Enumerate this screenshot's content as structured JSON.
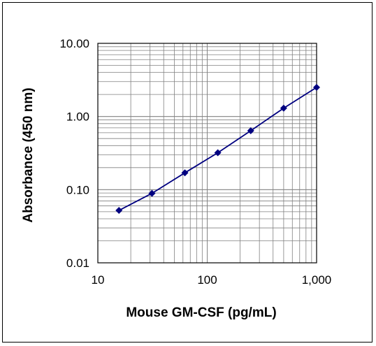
{
  "chart_data": {
    "type": "line",
    "title": "",
    "xlabel": "Mouse GM-CSF (pg/mL)",
    "ylabel": "Absorbance (450 nm)",
    "xscale": "log",
    "yscale": "log",
    "xlim": [
      10,
      1000
    ],
    "ylim": [
      0.01,
      10
    ],
    "x_tick_labels": [
      "10",
      "100",
      "1,000"
    ],
    "y_tick_labels": [
      "10.00",
      "1.00",
      "0.10",
      "0.01"
    ],
    "grid": true,
    "legend": "none",
    "series": [
      {
        "color": "#000080",
        "marker": "diamond",
        "x": [
          15.6,
          31.25,
          62.5,
          125,
          250,
          500,
          1000
        ],
        "y": [
          0.052,
          0.089,
          0.17,
          0.32,
          0.64,
          1.3,
          2.5
        ]
      }
    ]
  }
}
